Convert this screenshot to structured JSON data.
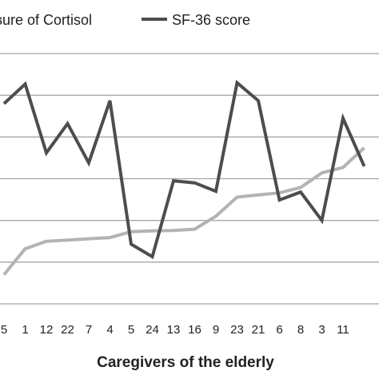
{
  "chart_data": {
    "type": "line",
    "xlabel": "Caregivers of the elderly",
    "ylabel": "",
    "categories": [
      "5",
      "1",
      "12",
      "22",
      "7",
      "4",
      "5",
      "24",
      "13",
      "16",
      "9",
      "23",
      "21",
      "6",
      "8",
      "3",
      "11",
      ""
    ],
    "ylim": [
      0,
      6
    ],
    "grid": true,
    "legend_position": "top",
    "series": [
      {
        "name": "sure of Cortisol",
        "color": "#b3b3b3",
        "values": [
          0.7,
          1.32,
          1.5,
          1.53,
          1.56,
          1.59,
          1.73,
          1.75,
          1.76,
          1.79,
          2.1,
          2.56,
          2.61,
          2.66,
          2.79,
          3.14,
          3.27,
          3.74
        ]
      },
      {
        "name": "SF-36 score",
        "color": "#4d4d4d",
        "values": [
          4.8,
          5.27,
          3.62,
          4.32,
          3.38,
          4.87,
          1.43,
          1.13,
          2.95,
          2.9,
          2.7,
          5.3,
          4.87,
          2.49,
          2.68,
          2.0,
          4.45,
          3.3
        ]
      }
    ]
  }
}
